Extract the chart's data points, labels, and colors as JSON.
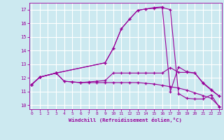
{
  "xlabel": "Windchill (Refroidissement éolien,°C)",
  "background_color": "#cce9f0",
  "line_color": "#990099",
  "grid_color": "#ffffff",
  "x_ticks": [
    0,
    1,
    2,
    3,
    4,
    5,
    6,
    7,
    8,
    9,
    10,
    11,
    12,
    13,
    14,
    15,
    16,
    17,
    18,
    19,
    20,
    21,
    22,
    23
  ],
  "y_ticks": [
    10,
    11,
    12,
    13,
    14,
    15,
    16,
    17
  ],
  "ylim": [
    9.7,
    17.5
  ],
  "xlim": [
    -0.3,
    23.3
  ],
  "curve1_x": [
    0,
    1,
    3,
    4,
    5,
    6,
    7,
    8,
    9,
    10,
    11,
    12,
    13,
    14,
    15,
    16,
    17,
    18,
    19,
    20,
    21,
    22,
    23
  ],
  "curve1_y": [
    11.5,
    12.05,
    12.35,
    11.75,
    11.7,
    11.65,
    11.65,
    11.65,
    11.65,
    11.65,
    11.65,
    11.65,
    11.65,
    11.6,
    11.55,
    11.45,
    11.35,
    11.25,
    11.1,
    10.9,
    10.7,
    10.5,
    9.9
  ],
  "curve2_x": [
    0,
    1,
    3,
    4,
    5,
    6,
    7,
    8,
    9,
    10,
    11,
    12,
    13,
    14,
    15,
    16,
    17,
    18,
    19,
    20,
    21,
    22,
    23
  ],
  "curve2_y": [
    11.5,
    12.05,
    12.35,
    11.75,
    11.7,
    11.65,
    11.7,
    11.75,
    11.8,
    12.35,
    12.35,
    12.35,
    12.35,
    12.35,
    12.35,
    12.35,
    12.75,
    12.4,
    12.4,
    12.35,
    11.65,
    11.15,
    10.65
  ],
  "curve3_x": [
    0,
    1,
    3,
    9,
    10,
    11,
    12,
    13,
    14,
    15,
    16,
    17,
    18,
    19,
    20,
    21,
    22,
    23
  ],
  "curve3_y": [
    11.5,
    12.05,
    12.35,
    13.1,
    14.15,
    15.6,
    16.3,
    16.95,
    17.05,
    17.15,
    17.2,
    11.0,
    12.8,
    12.45,
    12.35,
    11.6,
    11.1,
    10.65
  ],
  "curve4_x": [
    0,
    1,
    3,
    9,
    10,
    11,
    12,
    13,
    14,
    15,
    16,
    17,
    18,
    19,
    20,
    21,
    22,
    23
  ],
  "curve4_y": [
    11.5,
    12.05,
    12.35,
    13.1,
    14.15,
    15.6,
    16.3,
    16.95,
    17.05,
    17.1,
    17.15,
    17.0,
    10.85,
    10.5,
    10.45,
    10.45,
    10.75,
    9.85
  ]
}
